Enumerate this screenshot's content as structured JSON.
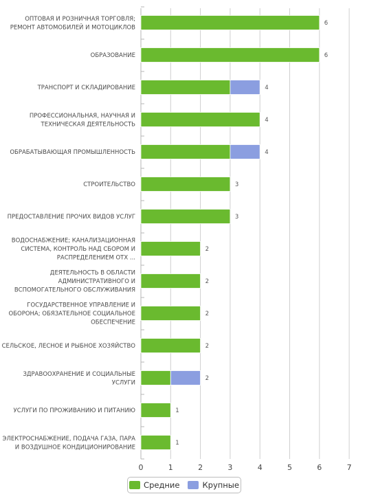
{
  "chart_data": {
    "type": "bar",
    "orientation": "horizontal",
    "stacked": true,
    "categories": [
      "ОПТОВАЯ И РОЗНИЧНАЯ ТОРГОВЛЯ; РЕМОНТ АВТОМОБИЛЕЙ И МОТОЦИКЛОВ",
      "ОБРАЗОВАНИЕ",
      "ТРАНСПОРТ И СКЛАДИРОВАНИЕ",
      "ПРОФЕССИОНАЛЬНАЯ, НАУЧНАЯ И ТЕХНИЧЕСКАЯ ДЕЯТЕЛЬНОСТЬ",
      "ОБРАБАТЫВАЮЩАЯ ПРОМЫШЛЕННОСТЬ",
      "СТРОИТЕЛЬСТВО",
      "ПРЕДОСТАВЛЕНИЕ ПРОЧИХ ВИДОВ УСЛУГ",
      "ВОДОСНАБЖЕНИЕ; КАНАЛИЗАЦИОННАЯ СИСТЕМА, КОНТРОЛЬ НАД СБОРОМ И РАСПРЕДЕЛЕНИЕМ ОТХ ...",
      "ДЕЯТЕЛЬНОСТЬ В ОБЛАСТИ АДМИНИСТРАТИВНОГО И ВСПОМОГАТЕЛЬНОГО ОБСЛУЖИВАНИЯ",
      "ГОСУДАРСТВЕННОЕ УПРАВЛЕНИЕ И ОБОРОНА; ОБЯЗАТЕЛЬНОЕ СОЦИАЛЬНОЕ ОБЕСПЕЧЕНИЕ",
      "СЕЛЬСКОЕ, ЛЕСНОЕ И РЫБНОЕ ХОЗЯЙСТВО",
      "ЗДРАВООХРАНЕНИЕ И СОЦИАЛЬНЫЕ УСЛУГИ",
      "УСЛУГИ ПО ПРОЖИВАНИЮ И ПИТАНИЮ",
      "ЭЛЕКТРОСНАБЖЕНИЕ, ПОДАЧА ГАЗА, ПАРА И ВОЗДУШНОЕ КОНДИЦИОНИРОВАНИЕ"
    ],
    "category_lines": [
      [
        "ОПТОВАЯ И РОЗНИЧНАЯ ТОРГОВЛЯ;",
        "РЕМОНТ АВТОМОБИЛЕЙ И МОТОЦИКЛОВ"
      ],
      [
        "ОБРАЗОВАНИЕ"
      ],
      [
        "ТРАНСПОРТ И СКЛАДИРОВАНИЕ"
      ],
      [
        "ПРОФЕССИОНАЛЬНАЯ, НАУЧНАЯ И",
        "ТЕХНИЧЕСКАЯ ДЕЯТЕЛЬНОСТЬ"
      ],
      [
        "ОБРАБАТЫВАЮЩАЯ ПРОМЫШЛЕННОСТЬ"
      ],
      [
        "СТРОИТЕЛЬСТВО"
      ],
      [
        "ПРЕДОСТАВЛЕНИЕ ПРОЧИХ ВИДОВ УСЛУГ"
      ],
      [
        "ВОДОСНАБЖЕНИЕ; КАНАЛИЗАЦИОННАЯ",
        "СИСТЕМА, КОНТРОЛЬ НАД СБОРОМ И",
        "РАСПРЕДЕЛЕНИЕМ ОТХ ..."
      ],
      [
        "ДЕЯТЕЛЬНОСТЬ В ОБЛАСТИ",
        "АДМИНИСТРАТИВНОГО И",
        "ВСПОМОГАТЕЛЬНОГО ОБСЛУЖИВАНИЯ"
      ],
      [
        "ГОСУДАРСТВЕННОЕ УПРАВЛЕНИЕ И",
        "ОБОРОНА; ОБЯЗАТЕЛЬНОЕ СОЦИАЛЬНОЕ",
        "ОБЕСПЕЧЕНИЕ"
      ],
      [
        "СЕЛЬСКОЕ, ЛЕСНОЕ И РЫБНОЕ ХОЗЯЙСТВО"
      ],
      [
        "ЗДРАВООХРАНЕНИЕ И СОЦИАЛЬНЫЕ",
        "УСЛУГИ"
      ],
      [
        "УСЛУГИ ПО ПРОЖИВАНИЮ И ПИТАНИЮ"
      ],
      [
        "ЭЛЕКТРОСНАБЖЕНИЕ, ПОДАЧА ГАЗА, ПАРА",
        "И ВОЗДУШНОЕ КОНДИЦИОНИРОВАНИЕ"
      ]
    ],
    "series": [
      {
        "name": "Средние",
        "color": "#6aba2f",
        "values": [
          6,
          6,
          3,
          4,
          3,
          3,
          3,
          2,
          2,
          2,
          2,
          1,
          1,
          1
        ]
      },
      {
        "name": "Крупные",
        "color": "#8b9ee0",
        "values": [
          0,
          0,
          1,
          0,
          1,
          0,
          0,
          0,
          0,
          0,
          0,
          1,
          0,
          0
        ]
      }
    ],
    "totals": [
      "6",
      "6",
      "4",
      "4",
      "4",
      "3",
      "3",
      "2",
      "2",
      "2",
      "2",
      "2",
      "1",
      "1"
    ],
    "xlim": [
      0,
      7
    ],
    "xticks": [
      "0",
      "1",
      "2",
      "3",
      "4",
      "5",
      "6",
      "7"
    ],
    "grid": true,
    "legend_position": "bottom"
  }
}
